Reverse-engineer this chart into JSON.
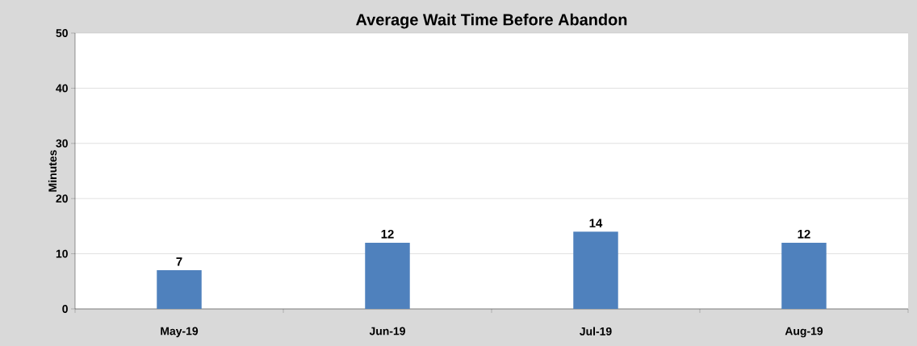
{
  "chart_data": {
    "type": "bar",
    "title": "Average Wait Time Before Abandon",
    "ylabel": "Minutes",
    "categories": [
      "May-19",
      "Jun-19",
      "Jul-19",
      "Aug-19"
    ],
    "values": [
      7,
      12,
      14,
      12
    ],
    "value_labels": [
      "7",
      "12",
      "14",
      "12"
    ],
    "color": "#4f81bd",
    "ylim": [
      0,
      50
    ],
    "yticks": [
      0,
      10,
      20,
      30,
      40,
      50
    ],
    "grid": "y"
  }
}
